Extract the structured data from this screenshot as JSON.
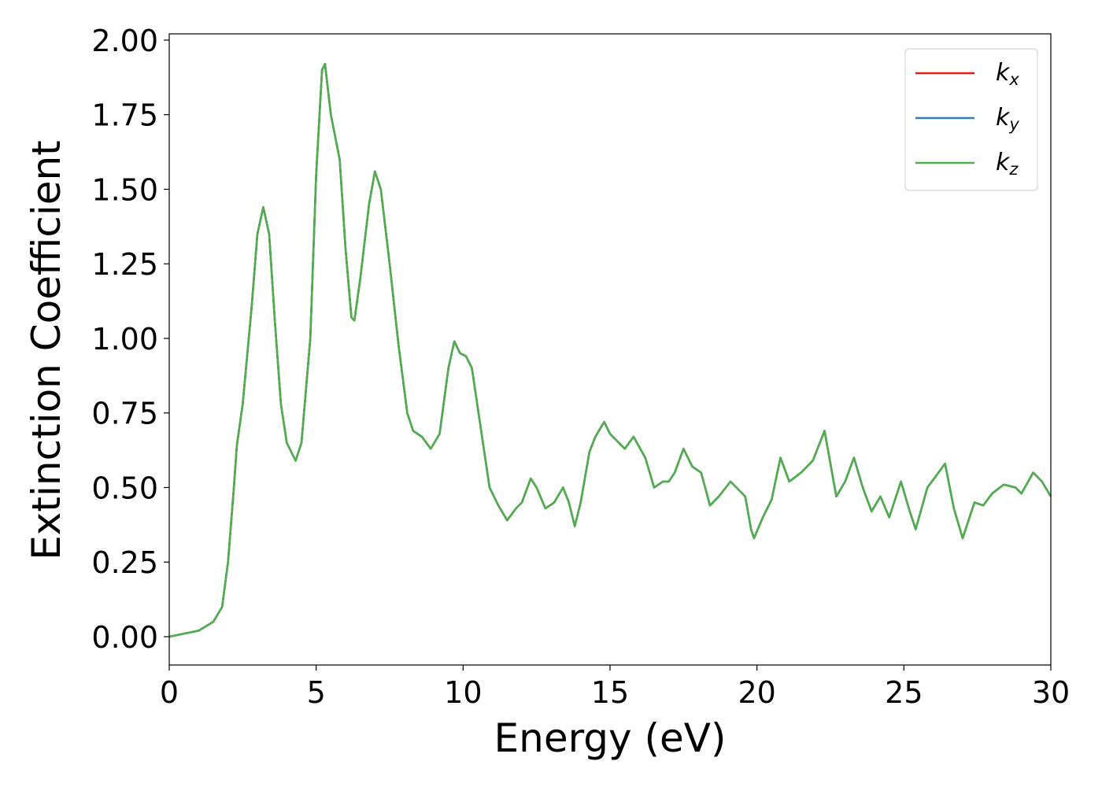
{
  "chart_data": {
    "type": "line",
    "xlabel": "Energy (eV)",
    "ylabel": "Extinction Coefficient",
    "x": [
      0,
      0.5,
      1.0,
      1.5,
      1.8,
      2.0,
      2.2,
      2.3,
      2.5,
      2.8,
      3.0,
      3.2,
      3.4,
      3.6,
      3.8,
      4.0,
      4.3,
      4.5,
      4.8,
      5.0,
      5.2,
      5.3,
      5.5,
      5.8,
      6.0,
      6.2,
      6.3,
      6.5,
      6.8,
      7.0,
      7.2,
      7.5,
      7.8,
      8.1,
      8.3,
      8.6,
      8.9,
      9.2,
      9.5,
      9.7,
      9.9,
      10.1,
      10.3,
      10.6,
      10.9,
      11.2,
      11.5,
      11.8,
      12.0,
      12.3,
      12.5,
      12.8,
      13.1,
      13.4,
      13.6,
      13.8,
      14.0,
      14.3,
      14.5,
      14.8,
      15.0,
      15.2,
      15.5,
      15.8,
      16.2,
      16.5,
      16.8,
      17.0,
      17.2,
      17.5,
      17.8,
      18.1,
      18.4,
      18.7,
      19.1,
      19.4,
      19.6,
      19.8,
      19.9,
      20.2,
      20.5,
      20.8,
      21.1,
      21.5,
      21.9,
      22.3,
      22.7,
      23.0,
      23.3,
      23.6,
      23.9,
      24.2,
      24.5,
      24.9,
      25.2,
      25.4,
      25.8,
      26.1,
      26.4,
      26.7,
      27.0,
      27.4,
      27.7,
      28.0,
      28.4,
      28.8,
      29.0,
      29.4,
      29.7,
      30.0
    ],
    "series": [
      {
        "name": "kx",
        "color": "#e41a1c",
        "values": [
          0.0,
          0.01,
          0.02,
          0.05,
          0.1,
          0.25,
          0.5,
          0.64,
          0.78,
          1.1,
          1.35,
          1.44,
          1.35,
          1.05,
          0.78,
          0.65,
          0.59,
          0.65,
          1.0,
          1.55,
          1.9,
          1.92,
          1.75,
          1.6,
          1.3,
          1.07,
          1.06,
          1.2,
          1.45,
          1.56,
          1.5,
          1.25,
          0.98,
          0.75,
          0.69,
          0.67,
          0.63,
          0.68,
          0.9,
          0.99,
          0.95,
          0.94,
          0.9,
          0.7,
          0.5,
          0.44,
          0.39,
          0.43,
          0.45,
          0.53,
          0.5,
          0.43,
          0.45,
          0.5,
          0.45,
          0.37,
          0.45,
          0.62,
          0.67,
          0.72,
          0.68,
          0.66,
          0.63,
          0.67,
          0.6,
          0.5,
          0.52,
          0.52,
          0.55,
          0.63,
          0.57,
          0.55,
          0.44,
          0.47,
          0.52,
          0.49,
          0.47,
          0.36,
          0.33,
          0.4,
          0.46,
          0.6,
          0.52,
          0.55,
          0.59,
          0.69,
          0.47,
          0.52,
          0.6,
          0.5,
          0.42,
          0.47,
          0.4,
          0.52,
          0.42,
          0.36,
          0.5,
          0.54,
          0.58,
          0.43,
          0.33,
          0.45,
          0.44,
          0.48,
          0.51,
          0.5,
          0.48,
          0.55,
          0.52,
          0.47
        ]
      },
      {
        "name": "ky",
        "color": "#377eb8",
        "values": [
          0.0,
          0.01,
          0.02,
          0.05,
          0.1,
          0.25,
          0.5,
          0.64,
          0.78,
          1.1,
          1.35,
          1.44,
          1.35,
          1.05,
          0.78,
          0.65,
          0.59,
          0.65,
          1.0,
          1.55,
          1.9,
          1.92,
          1.75,
          1.6,
          1.3,
          1.07,
          1.06,
          1.2,
          1.45,
          1.56,
          1.5,
          1.25,
          0.98,
          0.75,
          0.69,
          0.67,
          0.63,
          0.68,
          0.9,
          0.99,
          0.95,
          0.94,
          0.9,
          0.7,
          0.5,
          0.44,
          0.39,
          0.43,
          0.45,
          0.53,
          0.5,
          0.43,
          0.45,
          0.5,
          0.45,
          0.37,
          0.45,
          0.62,
          0.67,
          0.72,
          0.68,
          0.66,
          0.63,
          0.67,
          0.6,
          0.5,
          0.52,
          0.52,
          0.55,
          0.63,
          0.57,
          0.55,
          0.44,
          0.47,
          0.52,
          0.49,
          0.47,
          0.36,
          0.33,
          0.4,
          0.46,
          0.6,
          0.52,
          0.55,
          0.59,
          0.69,
          0.47,
          0.52,
          0.6,
          0.5,
          0.42,
          0.47,
          0.4,
          0.52,
          0.42,
          0.36,
          0.5,
          0.54,
          0.58,
          0.43,
          0.33,
          0.45,
          0.44,
          0.48,
          0.51,
          0.5,
          0.48,
          0.55,
          0.52,
          0.47
        ]
      },
      {
        "name": "kz",
        "color": "#4daf4a",
        "values": [
          0.0,
          0.01,
          0.02,
          0.05,
          0.1,
          0.25,
          0.5,
          0.64,
          0.78,
          1.1,
          1.35,
          1.44,
          1.35,
          1.05,
          0.78,
          0.65,
          0.59,
          0.65,
          1.0,
          1.55,
          1.9,
          1.92,
          1.75,
          1.6,
          1.3,
          1.07,
          1.06,
          1.2,
          1.45,
          1.56,
          1.5,
          1.25,
          0.98,
          0.75,
          0.69,
          0.67,
          0.63,
          0.68,
          0.9,
          0.99,
          0.95,
          0.94,
          0.9,
          0.7,
          0.5,
          0.44,
          0.39,
          0.43,
          0.45,
          0.53,
          0.5,
          0.43,
          0.45,
          0.5,
          0.45,
          0.37,
          0.45,
          0.62,
          0.67,
          0.72,
          0.68,
          0.66,
          0.63,
          0.67,
          0.6,
          0.5,
          0.52,
          0.52,
          0.55,
          0.63,
          0.57,
          0.55,
          0.44,
          0.47,
          0.52,
          0.49,
          0.47,
          0.36,
          0.33,
          0.4,
          0.46,
          0.6,
          0.52,
          0.55,
          0.59,
          0.69,
          0.47,
          0.52,
          0.6,
          0.5,
          0.42,
          0.47,
          0.4,
          0.52,
          0.42,
          0.36,
          0.5,
          0.54,
          0.58,
          0.43,
          0.33,
          0.45,
          0.44,
          0.48,
          0.51,
          0.5,
          0.48,
          0.55,
          0.52,
          0.47
        ]
      }
    ],
    "xlim": [
      0,
      30
    ],
    "xticks": [
      0,
      5,
      10,
      15,
      20,
      25,
      30
    ],
    "ylim": [
      -0.095,
      2.021
    ],
    "yticks": [
      {
        "value": 0,
        "label": "0.00"
      },
      {
        "value": 0.25,
        "label": "0.25"
      },
      {
        "value": 0.5,
        "label": "0.50"
      },
      {
        "value": 0.75,
        "label": "0.75"
      },
      {
        "value": 1.0,
        "label": "1.00"
      },
      {
        "value": 1.25,
        "label": "1.25"
      },
      {
        "value": 1.5,
        "label": "1.50"
      },
      {
        "value": 1.75,
        "label": "1.75"
      },
      {
        "value": 2.0,
        "label": "2.00"
      }
    ],
    "grid": false,
    "legend": "upper right"
  }
}
